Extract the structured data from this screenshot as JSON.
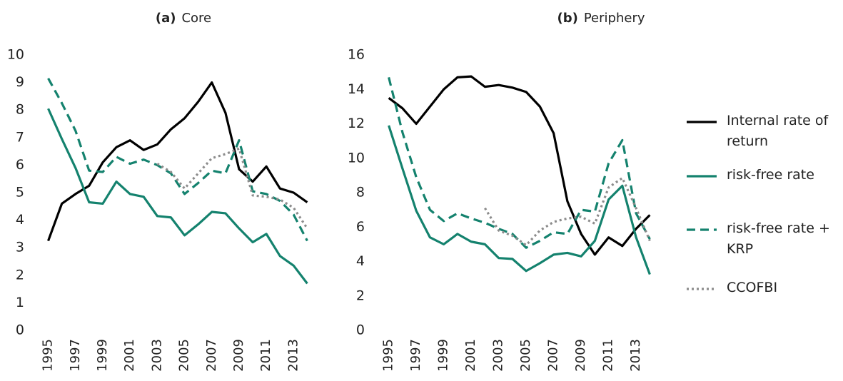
{
  "chart_data": [
    {
      "type": "line",
      "panel_label": "(a)",
      "title": "Core",
      "x": [
        1995,
        1996,
        1997,
        1998,
        1999,
        2000,
        2001,
        2002,
        2003,
        2004,
        2005,
        2006,
        2007,
        2008,
        2009,
        2010,
        2011,
        2012,
        2013,
        2014
      ],
      "xlim": [
        1994.5,
        2014.5
      ],
      "xticks": [
        1995,
        1997,
        1999,
        2001,
        2003,
        2005,
        2007,
        2009,
        2011,
        2013
      ],
      "ylim": [
        0,
        10
      ],
      "yticks": [
        0,
        1,
        2,
        3,
        4,
        5,
        6,
        7,
        8,
        9,
        10
      ],
      "series": [
        {
          "name": "Internal rate of return",
          "color": "#000000",
          "dash": "solid",
          "values": [
            3.25,
            4.6,
            4.95,
            5.25,
            6.1,
            6.65,
            6.9,
            6.55,
            6.75,
            7.3,
            7.7,
            8.3,
            9.0,
            7.9,
            5.85,
            5.4,
            5.95,
            5.15,
            5.0,
            4.65
          ]
        },
        {
          "name": "risk-free rate",
          "color": "#14826e",
          "dash": "solid",
          "values": [
            8.05,
            6.95,
            5.9,
            4.65,
            4.6,
            5.4,
            4.95,
            4.85,
            4.15,
            4.1,
            3.45,
            3.85,
            4.3,
            4.25,
            3.7,
            3.2,
            3.5,
            2.7,
            2.35,
            1.7
          ]
        },
        {
          "name": "risk-free rate + KRP",
          "color": "#14826e",
          "dash": "dashed",
          "values": [
            9.15,
            8.25,
            7.25,
            5.8,
            5.75,
            6.3,
            6.05,
            6.2,
            6.0,
            5.7,
            4.95,
            5.35,
            5.8,
            5.7,
            6.9,
            5.05,
            4.95,
            4.7,
            4.2,
            3.25
          ]
        },
        {
          "name": "CCOFBI",
          "color": "#8c8c8c",
          "dash": "dotted",
          "values": [
            null,
            null,
            null,
            null,
            null,
            null,
            null,
            null,
            6.05,
            5.75,
            5.15,
            5.7,
            6.25,
            6.4,
            6.6,
            4.9,
            4.85,
            4.75,
            4.45,
            3.7
          ]
        }
      ]
    },
    {
      "type": "line",
      "panel_label": "(b)",
      "title": "Periphery",
      "x": [
        1995,
        1996,
        1997,
        1998,
        1999,
        2000,
        2001,
        2002,
        2003,
        2004,
        2005,
        2006,
        2007,
        2008,
        2009,
        2010,
        2011,
        2012,
        2013,
        2014
      ],
      "xlim": [
        1994.5,
        2014.5
      ],
      "xticks": [
        1995,
        1997,
        1999,
        2001,
        2003,
        2005,
        2007,
        2009,
        2011,
        2013
      ],
      "ylim": [
        0,
        16
      ],
      "yticks": [
        0,
        2,
        4,
        6,
        8,
        10,
        12,
        14,
        16
      ],
      "series": [
        {
          "name": "Internal rate of return",
          "color": "#000000",
          "dash": "solid",
          "values": [
            13.5,
            12.9,
            12.0,
            13.0,
            14.0,
            14.7,
            14.75,
            14.15,
            14.25,
            14.1,
            13.85,
            13.0,
            11.45,
            7.5,
            5.6,
            4.4,
            5.4,
            4.9,
            5.9,
            6.7
          ]
        },
        {
          "name": "risk-free rate",
          "color": "#14826e",
          "dash": "solid",
          "values": [
            11.9,
            9.4,
            6.95,
            5.4,
            5.0,
            5.6,
            5.15,
            5.0,
            4.2,
            4.15,
            3.45,
            3.9,
            4.4,
            4.5,
            4.3,
            5.2,
            7.6,
            8.4,
            5.4,
            3.25
          ]
        },
        {
          "name": "risk-free rate + KRP",
          "color": "#14826e",
          "dash": "dashed",
          "values": [
            14.7,
            11.5,
            8.9,
            7.0,
            6.35,
            6.8,
            6.5,
            6.25,
            5.9,
            5.6,
            4.8,
            5.2,
            5.7,
            5.6,
            7.0,
            6.9,
            9.7,
            11.05,
            6.8,
            5.3
          ]
        },
        {
          "name": "CCOFBI",
          "color": "#8c8c8c",
          "dash": "dotted",
          "values": [
            null,
            null,
            null,
            null,
            null,
            null,
            null,
            7.1,
            5.8,
            5.5,
            4.95,
            5.8,
            6.3,
            6.5,
            6.6,
            6.2,
            8.3,
            8.85,
            7.1,
            5.2
          ]
        }
      ]
    }
  ]
}
